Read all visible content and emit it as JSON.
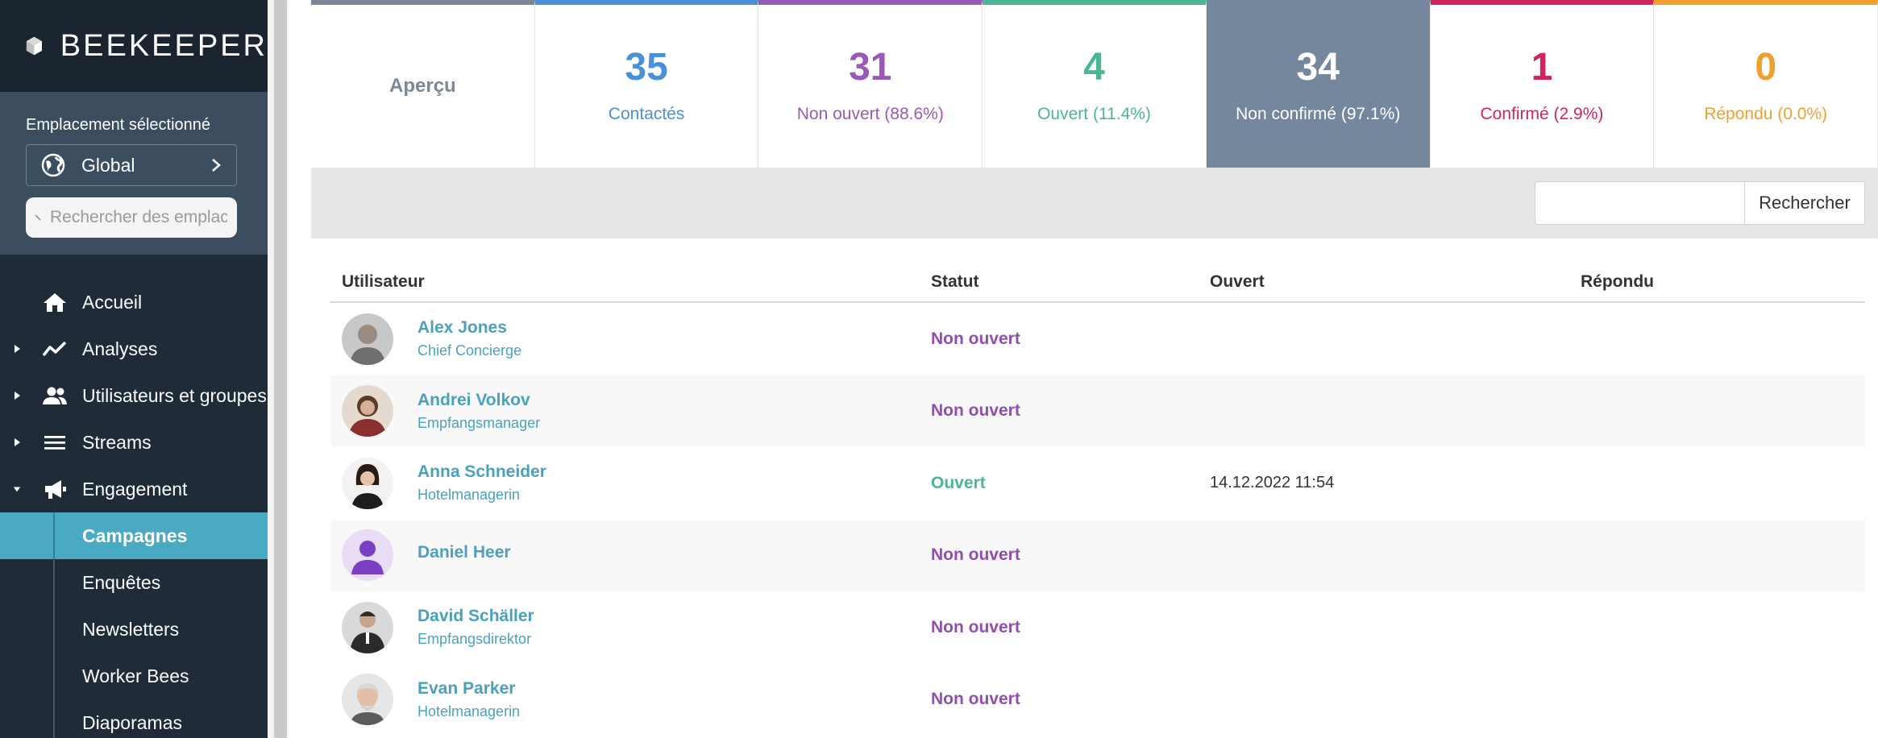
{
  "app": {
    "brand": "BEEKEEPER"
  },
  "location": {
    "label": "Emplacement sélectionné",
    "current": "Global",
    "search_placeholder": "Rechercher des emplacements"
  },
  "nav": {
    "items": [
      {
        "label": "Accueil",
        "icon": "home-icon"
      },
      {
        "label": "Analyses",
        "icon": "chart-line-icon"
      },
      {
        "label": "Utilisateurs et groupes",
        "icon": "users-icon"
      },
      {
        "label": "Streams",
        "icon": "list-icon"
      },
      {
        "label": "Engagement",
        "icon": "megaphone-icon"
      }
    ],
    "sub_items": [
      {
        "label": "Campagnes",
        "active": true
      },
      {
        "label": "Enquêtes"
      },
      {
        "label": "Newsletters"
      },
      {
        "label": "Worker Bees"
      },
      {
        "label": "Diaporamas"
      }
    ]
  },
  "stats": [
    {
      "label": "Aperçu",
      "color": "#7a8797"
    },
    {
      "value": "35",
      "label": "Contactés",
      "color": "#4a90d9"
    },
    {
      "value": "31",
      "label": "Non ouvert (88.6%)",
      "color": "#9b59b6"
    },
    {
      "value": "4",
      "label": "Ouvert (11.4%)",
      "color": "#4bb596"
    },
    {
      "value": "34",
      "label": "Non confirmé (97.1%)",
      "color": "#75879c"
    },
    {
      "value": "1",
      "label": "Confirmé (2.9%)",
      "color": "#d0245e"
    },
    {
      "value": "0",
      "label": "Répondu (0.0%)",
      "color": "#f0a030"
    }
  ],
  "search": {
    "button_label": "Rechercher",
    "value": ""
  },
  "table": {
    "headers": {
      "user": "Utilisateur",
      "status": "Statut",
      "opened": "Ouvert",
      "replied": "Répondu"
    },
    "rows": [
      {
        "name": "Alex Jones",
        "role": "Chief Concierge",
        "status": "Non ouvert",
        "opened": "",
        "replied": ""
      },
      {
        "name": "Andrei Volkov",
        "role": "Empfangsmanager",
        "status": "Non ouvert",
        "opened": "",
        "replied": ""
      },
      {
        "name": "Anna Schneider",
        "role": "Hotelmanagerin",
        "status": "Ouvert",
        "opened": "14.12.2022 11:54",
        "replied": ""
      },
      {
        "name": "Daniel Heer",
        "role": "",
        "status": "Non ouvert",
        "opened": "",
        "replied": ""
      },
      {
        "name": "David Schäller",
        "role": "Empfangsdirektor",
        "status": "Non ouvert",
        "opened": "",
        "replied": ""
      },
      {
        "name": "Evan Parker",
        "role": "Hotelmanagerin",
        "status": "Non ouvert",
        "opened": "",
        "replied": ""
      }
    ]
  },
  "colors": {
    "status_not_opened": "#8e4fb0",
    "status_opened": "#4bb596",
    "link": "#4aa1bd",
    "sidebar_active": "#4aa9c3"
  }
}
